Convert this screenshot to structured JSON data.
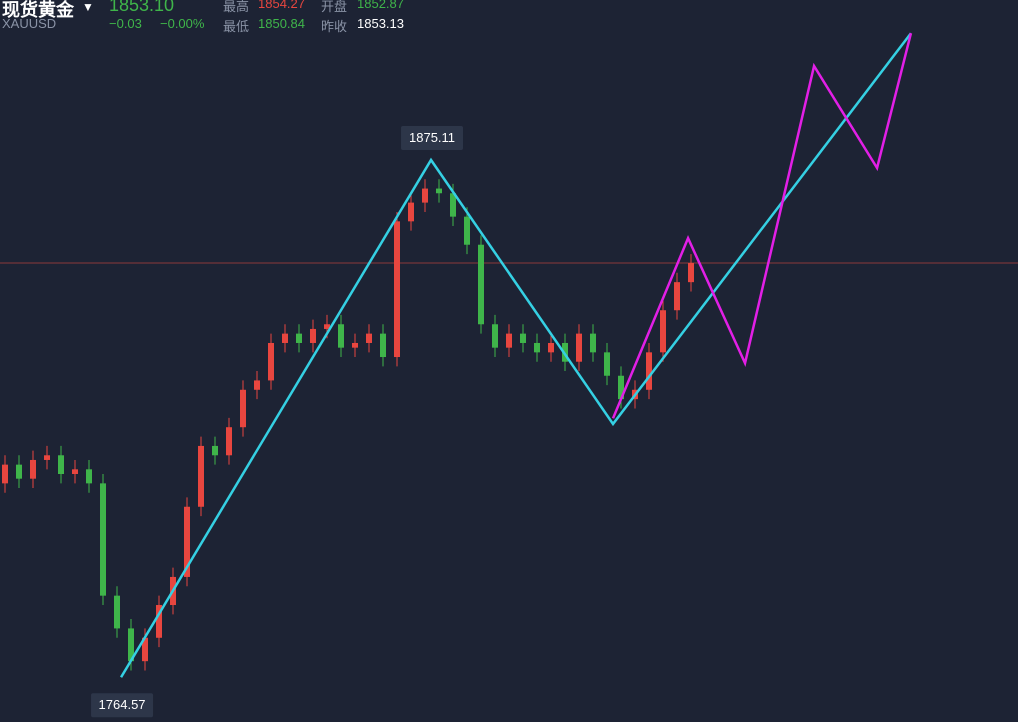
{
  "header": {
    "name": "现货黄金",
    "symbol": "XAUUSD",
    "price": "1853.10",
    "change": "−0.03",
    "change_pct": "−0.00%",
    "stats": [
      {
        "label": "最高",
        "value": "1854.27"
      },
      {
        "label": "开盘",
        "value": "1852.87"
      },
      {
        "label": "最低",
        "value": "1850.84"
      },
      {
        "label": "昨收",
        "value": "1853.13"
      }
    ]
  },
  "chart_data": {
    "type": "candlestick",
    "ylim": [
      1755,
      1909.3
    ],
    "open": [
      1806,
      1810,
      1807,
      1811,
      1812,
      1808,
      1809,
      1806,
      1782,
      1775,
      1768,
      1773,
      1780,
      1786,
      1801,
      1814,
      1812,
      1818,
      1826,
      1828,
      1836,
      1838,
      1836,
      1839,
      1840,
      1835,
      1836,
      1838,
      1833,
      1862,
      1866,
      1869,
      1868,
      1863,
      1857,
      1840,
      1835,
      1838,
      1836,
      1834,
      1836,
      1832,
      1838,
      1834,
      1829,
      1824,
      1826,
      1834,
      1843,
      1849
    ],
    "high": [
      1812,
      1812,
      1813,
      1814,
      1814,
      1811,
      1811,
      1808,
      1784,
      1777,
      1775,
      1782,
      1788,
      1803,
      1816,
      1816,
      1820,
      1828,
      1830,
      1838,
      1840,
      1840,
      1841,
      1842,
      1842,
      1838,
      1840,
      1840,
      1864,
      1868,
      1871,
      1871,
      1870,
      1865,
      1859,
      1842,
      1840,
      1840,
      1838,
      1838,
      1838,
      1840,
      1840,
      1836,
      1831,
      1828,
      1836,
      1845,
      1851,
      1855
    ],
    "low": [
      1804,
      1805,
      1805,
      1809,
      1806,
      1806,
      1804,
      1780,
      1773,
      1766,
      1766,
      1771,
      1778,
      1784,
      1799,
      1810,
      1810,
      1816,
      1824,
      1826,
      1834,
      1834,
      1834,
      1837,
      1833,
      1833,
      1834,
      1831,
      1831,
      1860,
      1864,
      1866,
      1861,
      1855,
      1838,
      1833,
      1833,
      1834,
      1832,
      1832,
      1830,
      1830,
      1832,
      1827,
      1822,
      1822,
      1824,
      1832,
      1841,
      1847
    ],
    "close": [
      1810,
      1807,
      1811,
      1812,
      1808,
      1809,
      1806,
      1782,
      1775,
      1768,
      1773,
      1780,
      1786,
      1801,
      1814,
      1812,
      1818,
      1826,
      1828,
      1836,
      1838,
      1836,
      1839,
      1840,
      1835,
      1836,
      1838,
      1833,
      1862,
      1866,
      1869,
      1868,
      1863,
      1857,
      1840,
      1835,
      1838,
      1836,
      1834,
      1836,
      1832,
      1838,
      1834,
      1829,
      1824,
      1826,
      1834,
      1843,
      1849,
      1853.1
    ],
    "up_color": "#e8463f",
    "down_color": "#3fb54a",
    "last_price": 1853.1,
    "last_price_color": "#8a3a3a",
    "drawings": [
      {
        "color": "#35d0e3",
        "x": [
          8.29,
          30.43,
          43.43,
          64.71
        ],
        "values": [
          1764.57,
          1875.11,
          1818.7,
          1902.2
        ]
      },
      {
        "color": "#e21fe6",
        "x": [
          43.43,
          48.79,
          52.86,
          57.79,
          62.29,
          64.71
        ],
        "values": [
          1819.9,
          1858.4,
          1831.7,
          1895.2,
          1873.4,
          1902.2
        ]
      }
    ],
    "price_labels": [
      {
        "x": 30.43,
        "value": 1875.11,
        "position": "above"
      },
      {
        "x": 8.29,
        "value": 1764.57,
        "position": "below"
      }
    ]
  }
}
